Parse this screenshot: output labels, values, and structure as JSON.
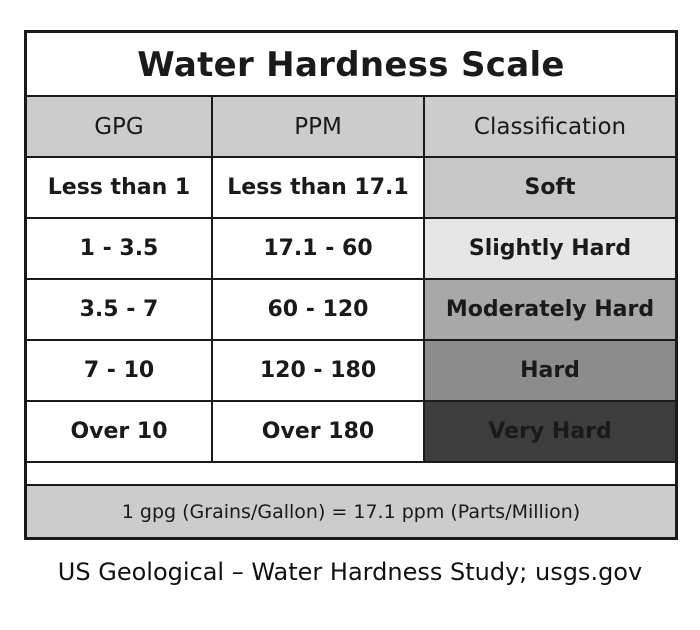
{
  "title": "Water Hardness Scale",
  "table": {
    "headers": [
      "GPG",
      "PPM",
      "Classification"
    ],
    "rows": [
      {
        "gpg": "Less than 1",
        "ppm": "Less than 17.1",
        "classification": "Soft",
        "shade": "#c7c7c7"
      },
      {
        "gpg": "1 - 3.5",
        "ppm": "17.1 - 60",
        "classification": "Slightly Hard",
        "shade": "#e6e6e6"
      },
      {
        "gpg": "3.5 - 7",
        "ppm": "60 - 120",
        "classification": "Moderately Hard",
        "shade": "#a8a8a8"
      },
      {
        "gpg": "7 - 10",
        "ppm": "120 - 180",
        "classification": "Hard",
        "shade": "#8c8c8c"
      },
      {
        "gpg": "Over 10",
        "ppm": "Over 180",
        "classification": "Very Hard",
        "shade": "#3d3d3d"
      }
    ]
  },
  "footnote": "1 gpg (Grains/Gallon) = 17.1 ppm (Parts/Million)",
  "caption": "US Geological – Water Hardness Study; usgs.gov"
}
